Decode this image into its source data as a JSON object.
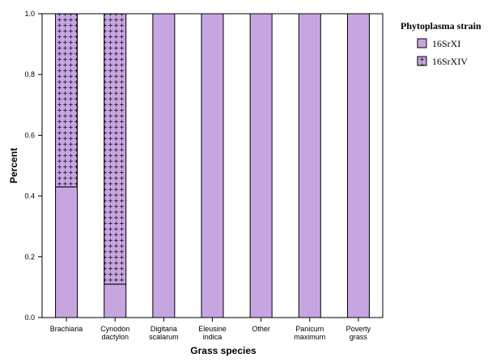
{
  "chart_data": {
    "type": "bar",
    "stacked": true,
    "xlabel": "Grass species",
    "ylabel": "Percent",
    "ylim": [
      0,
      1
    ],
    "yticks": [
      "0.0",
      "0.2",
      "0.4",
      "0.6",
      "0.8",
      "1.0"
    ],
    "categories": [
      [
        "Brachiaria"
      ],
      [
        "Cynodon",
        "dactylon"
      ],
      [
        "Digitaria",
        "scalarum"
      ],
      [
        "Eleusine",
        "indica"
      ],
      [
        "Other"
      ],
      [
        "Panicum",
        "maximum"
      ],
      [
        "Poverty",
        "grass"
      ]
    ],
    "series": [
      {
        "name": "16SrXI",
        "values": [
          0.43,
          0.11,
          1.0,
          1.0,
          1.0,
          1.0,
          1.0
        ],
        "color": "#C6A5E0",
        "pattern": "solid"
      },
      {
        "name": "16SrXIV",
        "values": [
          0.57,
          0.89,
          0.0,
          0.0,
          0.0,
          0.0,
          0.0
        ],
        "color": "#C6A5E0",
        "pattern": "dotted-cross"
      }
    ],
    "legend": {
      "title": "Phytoplasma strain",
      "position": "top-right"
    },
    "grid": false
  }
}
